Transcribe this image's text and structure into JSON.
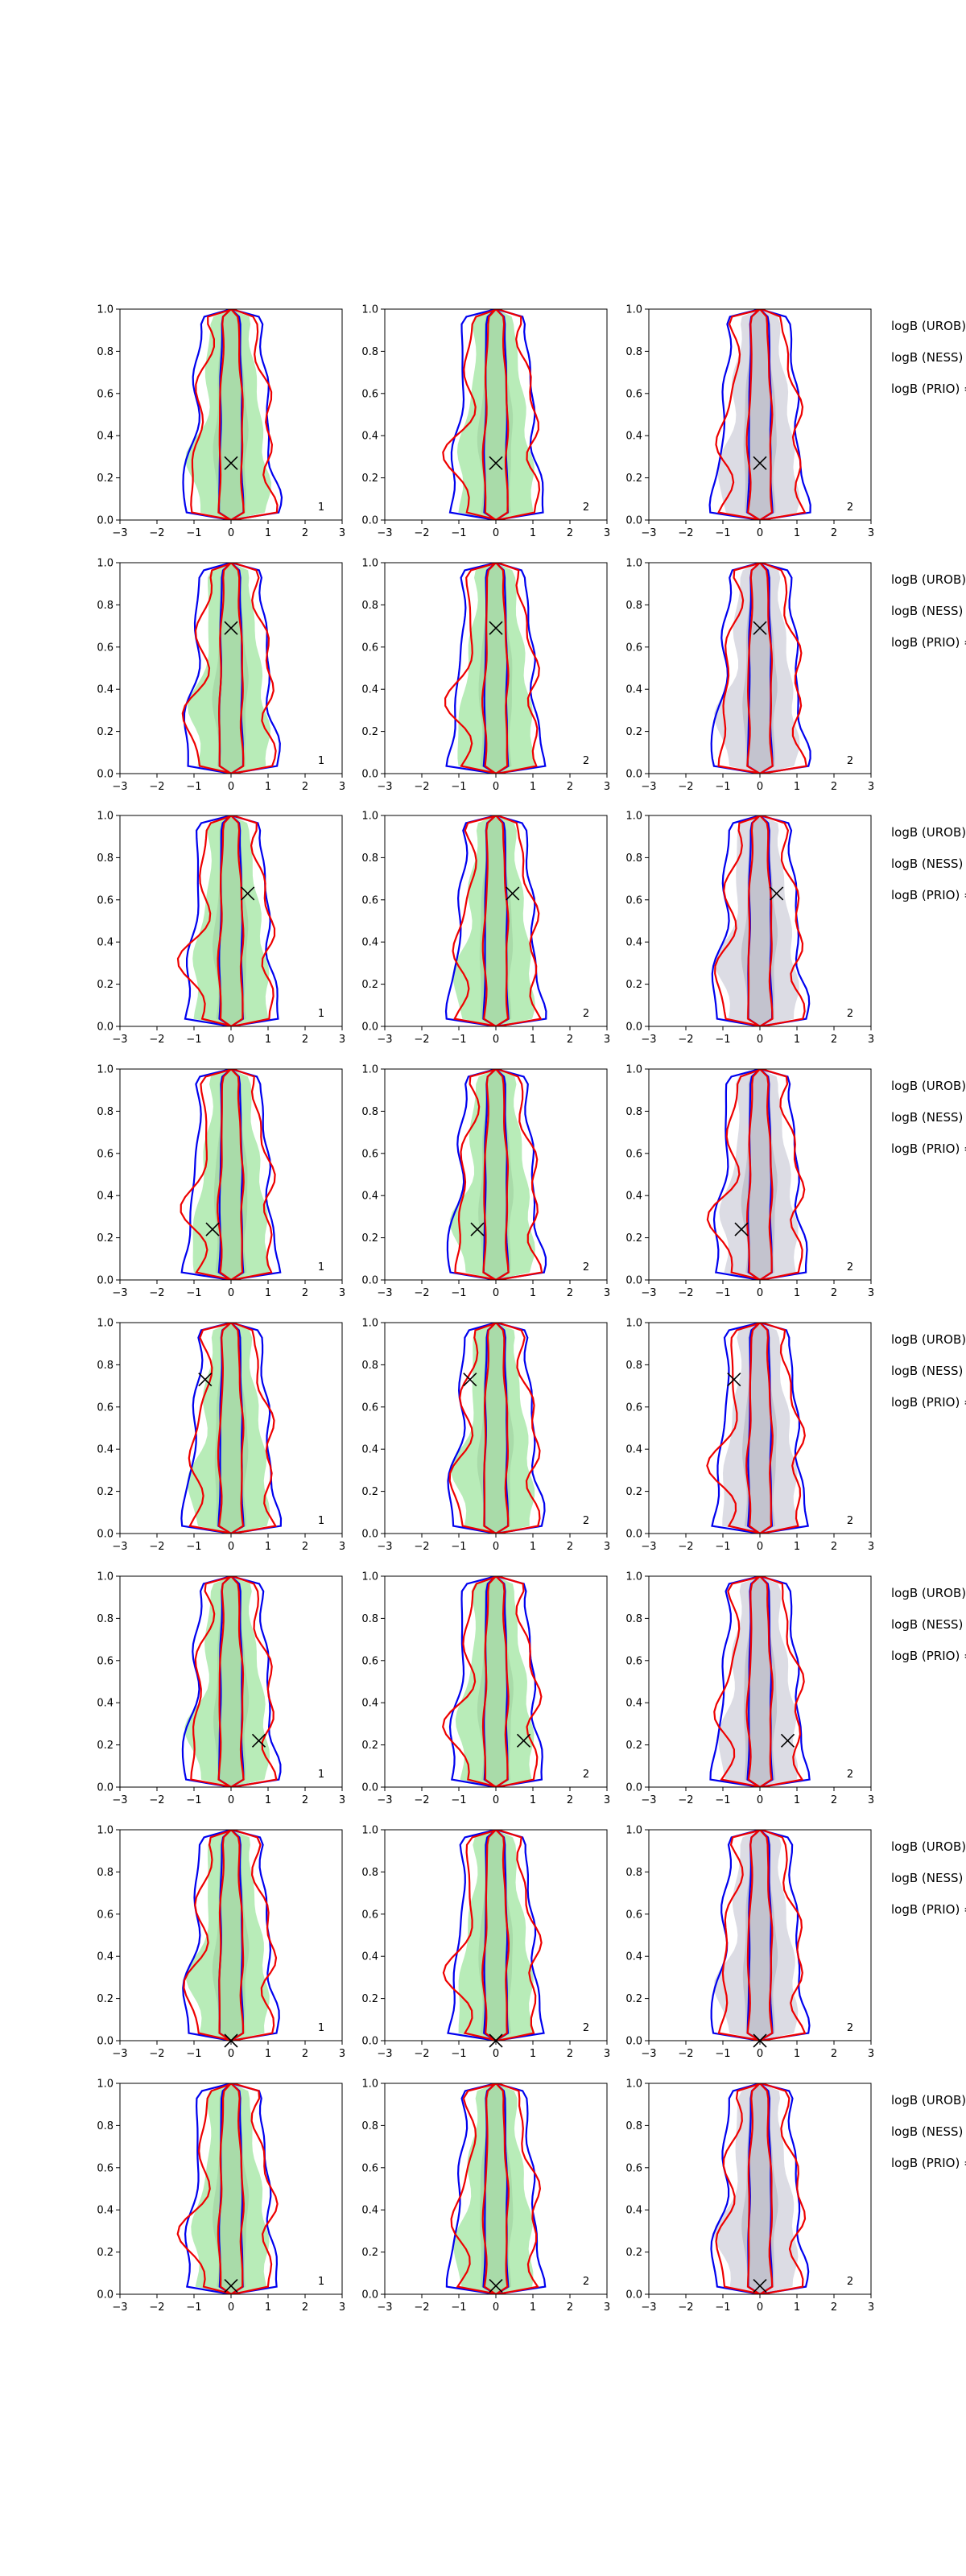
{
  "chart_data": {
    "type": "contour-grid",
    "grid": {
      "rows": 8,
      "cols": 3
    },
    "xlim": [
      -3,
      3
    ],
    "ylim": [
      0,
      1
    ],
    "xticks": [
      -3,
      -2,
      -1,
      0,
      1,
      2,
      3
    ],
    "yticks": [
      0.0,
      0.2,
      0.4,
      0.6,
      0.8,
      1.0
    ],
    "xtick_labels": [
      "−3",
      "−2",
      "−1",
      "0",
      "1",
      "2",
      "3"
    ],
    "ytick_labels": [
      "0.0",
      "0.2",
      "0.4",
      "0.6",
      "0.8",
      "1.0"
    ],
    "column_panel_ids": [
      "1",
      "2",
      "2"
    ],
    "column_fills": [
      "green",
      "green",
      "gray"
    ],
    "colors": {
      "blue": "#0000ee",
      "red": "#ee0000",
      "green_fill": "#b8ecb8",
      "green_dark": "#a3d4a3",
      "gray_fill": "#dcdce4",
      "gray_dark": "#b8b8c4",
      "marker": "#000000"
    },
    "rows": [
      {
        "marker": [
          0.0,
          0.27
        ],
        "logb": [
          "logB (UROB) =",
          "logB (NESS) =",
          "logB (PRIO) ="
        ]
      },
      {
        "marker": [
          0.0,
          0.69
        ],
        "logb": [
          "logB (UROB) =",
          "logB (NESS) =",
          "logB (PRIO) ="
        ]
      },
      {
        "marker": [
          0.45,
          0.63
        ],
        "logb": [
          "logB (UROB) =",
          "logB (NESS) =",
          "logB (PRIO) ="
        ]
      },
      {
        "marker": [
          -0.5,
          0.24
        ],
        "logb": [
          "logB (UROB) =",
          "logB (NESS) =",
          "logB (PRIO) ="
        ]
      },
      {
        "marker": [
          -0.7,
          0.73
        ],
        "logb": [
          "logB (UROB) =",
          "logB (NESS) =",
          "logB (PRIO) ="
        ]
      },
      {
        "marker": [
          0.75,
          0.22
        ],
        "logb": [
          "logB (UROB) =",
          "logB (NESS) =",
          "logB (PRIO) ="
        ]
      },
      {
        "marker": [
          0.0,
          0.0
        ],
        "logb": [
          "logB (UROB) =",
          "logB (NESS) =",
          "logB (PRIO) ="
        ]
      },
      {
        "marker": [
          0.0,
          0.04
        ],
        "logb": [
          "logB (UROB) =",
          "logB (NESS) =",
          "logB (PRIO) ="
        ]
      }
    ]
  }
}
